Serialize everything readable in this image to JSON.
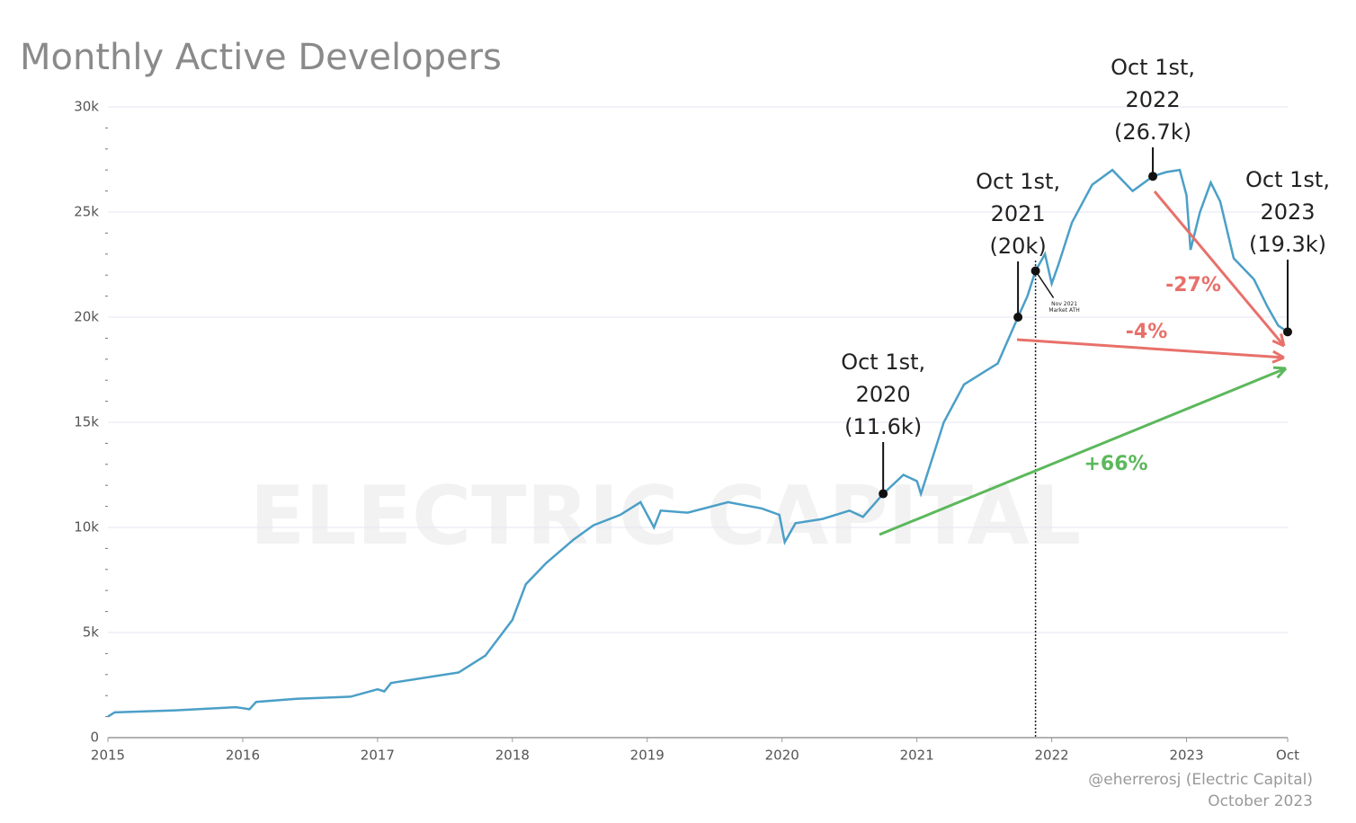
{
  "chart_data": {
    "type": "line",
    "title": "Monthly Active Developers",
    "watermark": "ELECTRIC CAPITAL",
    "source": [
      "@eherrerosj (Electric Capital)",
      "October 2023"
    ],
    "x": [
      2015.0,
      2015.05,
      2015.5,
      2015.95,
      2016.0,
      2016.05,
      2016.1,
      2016.4,
      2016.8,
      2017.0,
      2017.05,
      2017.1,
      2017.4,
      2017.6,
      2017.8,
      2018.0,
      2018.1,
      2018.25,
      2018.45,
      2018.6,
      2018.8,
      2018.95,
      2019.05,
      2019.1,
      2019.3,
      2019.6,
      2019.85,
      2019.98,
      2020.02,
      2020.1,
      2020.3,
      2020.5,
      2020.6,
      2020.75,
      2020.9,
      2021.0,
      2021.03,
      2021.1,
      2021.2,
      2021.35,
      2021.5,
      2021.6,
      2021.75,
      2021.82,
      2021.88,
      2021.95,
      2022.0,
      2022.05,
      2022.15,
      2022.3,
      2022.45,
      2022.6,
      2022.75,
      2022.85,
      2022.95,
      2023.0,
      2023.03,
      2023.1,
      2023.18,
      2023.25,
      2023.35,
      2023.5,
      2023.6,
      2023.68,
      2023.75
    ],
    "series": [
      {
        "name": "Monthly Active Developers",
        "color": "#4b9fc7",
        "values": [
          1000,
          1200,
          1300,
          1450,
          1400,
          1350,
          1700,
          1850,
          1950,
          2300,
          2200,
          2600,
          2900,
          3100,
          3900,
          5600,
          7300,
          8300,
          9400,
          10100,
          10600,
          11200,
          10000,
          10800,
          10700,
          11200,
          10900,
          10600,
          9300,
          10200,
          10400,
          10800,
          10500,
          11600,
          12500,
          12200,
          11600,
          13000,
          15000,
          16800,
          17400,
          17800,
          20000,
          21000,
          22200,
          23000,
          21600,
          22500,
          24500,
          26300,
          27000,
          26000,
          26700,
          26900,
          27000,
          25800,
          23200,
          25000,
          26400,
          25500,
          22800,
          21800,
          20500,
          19600,
          19300
        ]
      }
    ],
    "xlim": [
      2015,
      2023.75
    ],
    "xticks": [
      2015,
      2016,
      2017,
      2018,
      2019,
      2020,
      2021,
      2022,
      2023,
      {
        "value": 2023.75,
        "label": "Oct"
      }
    ],
    "ylim": [
      0,
      30000
    ],
    "yticks": [
      0,
      {
        "value": 5000,
        "label": "5k"
      },
      {
        "value": 10000,
        "label": "10k"
      },
      {
        "value": 15000,
        "label": "15k"
      },
      {
        "value": 20000,
        "label": "20k"
      },
      {
        "value": 25000,
        "label": "25k"
      },
      {
        "value": 30000,
        "label": "30k"
      }
    ],
    "grid": true,
    "annotations": [
      {
        "x": 2020.75,
        "lines": [
          "Oct 1st,",
          "2020",
          "(11.6k)"
        ]
      },
      {
        "x": 2021.75,
        "lines": [
          "Oct 1st,",
          "2021",
          "(20k)"
        ]
      },
      {
        "x": 2022.75,
        "lines": [
          "Oct 1st,",
          "2022",
          "(26.7k)"
        ]
      },
      {
        "x": 2023.75,
        "lines": [
          "Oct 1st,",
          "2023",
          "(19.3k)"
        ]
      }
    ],
    "ath": {
      "x": 2021.88,
      "lines": [
        "Nov 2021",
        "Market ATH"
      ]
    },
    "changes": [
      {
        "label": "-27%",
        "color": "#e8706a"
      },
      {
        "label": "-4%",
        "color": "#e8706a"
      },
      {
        "label": "+66%",
        "color": "#5cb85c"
      }
    ]
  }
}
